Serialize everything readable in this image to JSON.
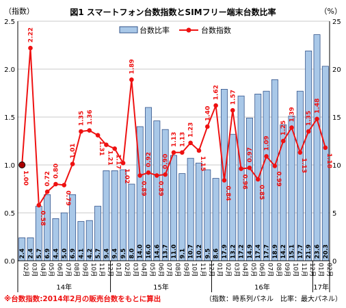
{
  "chart_data": {
    "type": "bar+line",
    "title": "図1 スマートフォン台数指数とSIMフリー端末台数比率",
    "left_axis_label": "（指数）",
    "right_axis_label": "（%）",
    "left_ylim": [
      0,
      2.5
    ],
    "right_ylim": [
      0,
      25
    ],
    "left_ticks": [
      "0.0",
      "0.5",
      "1.0",
      "1.5",
      "2.0",
      "2.5"
    ],
    "right_ticks": [
      "0",
      "5",
      "10",
      "15",
      "20",
      "25"
    ],
    "grid": true,
    "legend_position": "top-center",
    "categories": [
      "02月",
      "03月",
      "04月",
      "05月",
      "06月",
      "07月",
      "08月",
      "09月",
      "10月",
      "11月",
      "12月",
      "01月",
      "02月",
      "03月",
      "04月",
      "05月",
      "06月",
      "07月",
      "08月",
      "09月",
      "10月",
      "11月",
      "12月",
      "01月",
      "02月",
      "03月",
      "04月",
      "05月",
      "06月",
      "07月",
      "08月",
      "09月",
      "10月",
      "11月",
      "12月",
      "01月",
      "02月"
    ],
    "years": [
      {
        "label": "14年",
        "start": 0,
        "end": 10
      },
      {
        "label": "15年",
        "start": 11,
        "end": 22
      },
      {
        "label": "16年",
        "start": 23,
        "end": 34
      },
      {
        "label": "17年",
        "start": 35,
        "end": 36
      }
    ],
    "series": [
      {
        "name": "台数比率",
        "type": "bar",
        "axis": "right",
        "values": [
          2.4,
          2.4,
          5.7,
          6.9,
          4.4,
          5.0,
          6.9,
          4.1,
          4.2,
          5.7,
          9.4,
          9.4,
          9.5,
          8.0,
          14.0,
          16.0,
          14.6,
          13.7,
          11.0,
          9.1,
          10.7,
          10.2,
          9.5,
          8.6,
          17.9,
          13.2,
          17.2,
          14.9,
          17.4,
          17.7,
          18.9,
          14.2,
          15.1,
          17.7,
          21.9,
          23.6,
          20.3
        ]
      },
      {
        "name": "台数指数",
        "type": "line",
        "axis": "left",
        "values": [
          1.0,
          2.22,
          0.58,
          0.72,
          0.8,
          0.79,
          1.01,
          1.35,
          1.36,
          1.31,
          1.21,
          1.17,
          1.02,
          1.89,
          0.89,
          0.92,
          0.89,
          0.9,
          1.13,
          1.13,
          1.23,
          1.15,
          1.4,
          1.62,
          0.84,
          1.57,
          0.96,
          0.97,
          0.85,
          1.09,
          0.99,
          1.25,
          1.39,
          1.13,
          1.35,
          1.48,
          1.18
        ]
      }
    ],
    "colors": {
      "bar_fill": "#a9c8e8",
      "bar_edge": "#33538a",
      "line": "#ee1111",
      "label": "#ee1111"
    }
  },
  "footnote_left": "※台数指数:2014年2月の販売台数をもとに算出",
  "footnote_right": "（指数：時系列パネル　比率：最大パネル）"
}
